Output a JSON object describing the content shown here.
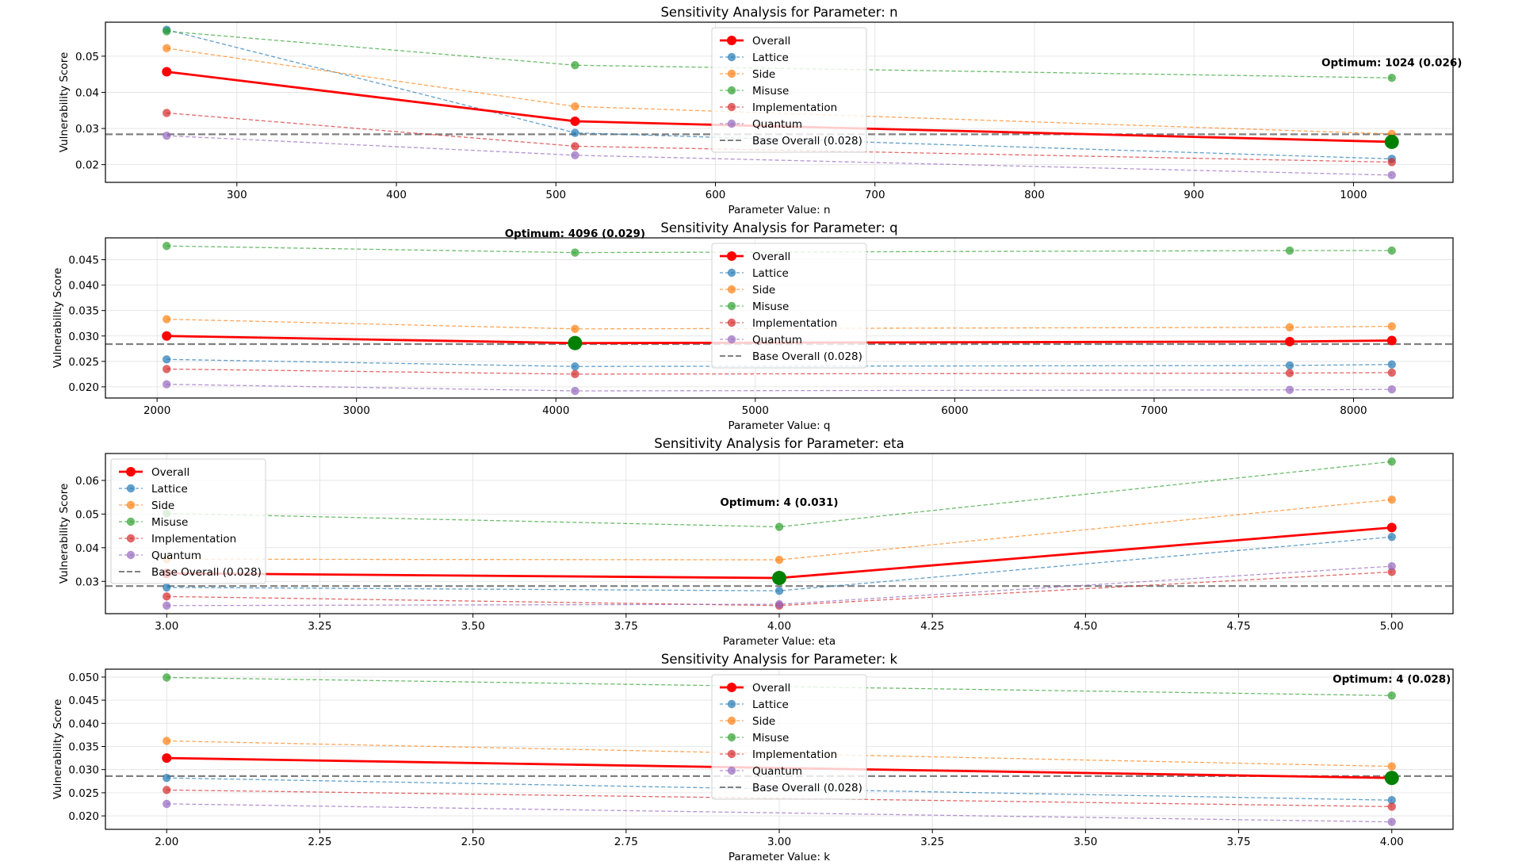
{
  "figure_title": "",
  "legend_labels": {
    "overall": "Overall",
    "lattice": "Lattice",
    "side": "Side",
    "misuse": "Misuse",
    "implementation": "Implementation",
    "quantum": "Quantum",
    "base": "Base Overall (0.028)"
  },
  "colors": {
    "overall": "#ff0000",
    "lattice": "#1f77b4",
    "side": "#ff7f0e",
    "misuse": "#2ca02c",
    "implementation": "#d62728",
    "quantum": "#9467bd",
    "base": "#808080",
    "optimum": "#008000",
    "grid": "#e0e0e0"
  },
  "chart_data": [
    {
      "type": "line",
      "title": "Sensitivity Analysis for Parameter: n",
      "xlabel": "Parameter Value: n",
      "ylabel": "Vulnerability Score",
      "x": [
        256,
        512,
        1024
      ],
      "xlim": [
        217.6,
        1062.4
      ],
      "ylim": [
        0.0151,
        0.0594
      ],
      "xticks": [
        300,
        400,
        500,
        600,
        700,
        800,
        900,
        1000
      ],
      "xtick_labels": [
        "300",
        "400",
        "500",
        "600",
        "700",
        "800",
        "900",
        "1000"
      ],
      "yticks": [
        0.02,
        0.03,
        0.04,
        0.05
      ],
      "ytick_labels": [
        "0.02",
        "0.03",
        "0.04",
        "0.05"
      ],
      "grid": true,
      "legend_position": "upper-center",
      "series": [
        {
          "key": "overall",
          "name": "Overall",
          "values": [
            0.0457,
            0.032,
            0.0263
          ]
        },
        {
          "key": "lattice",
          "name": "Lattice",
          "values": [
            0.0573,
            0.0288,
            0.0216
          ]
        },
        {
          "key": "side",
          "name": "Side",
          "values": [
            0.0522,
            0.0361,
            0.0285
          ]
        },
        {
          "key": "misuse",
          "name": "Misuse",
          "values": [
            0.0569,
            0.0475,
            0.044
          ]
        },
        {
          "key": "implementation",
          "name": "Implementation",
          "values": [
            0.0343,
            0.0251,
            0.0207
          ]
        },
        {
          "key": "quantum",
          "name": "Quantum",
          "values": [
            0.028,
            0.0226,
            0.0171
          ]
        }
      ],
      "base_overall": 0.0284,
      "optimum": {
        "x": 1024,
        "y": 0.0263,
        "label": "Optimum: 1024 (0.026)"
      }
    },
    {
      "type": "line",
      "title": "Sensitivity Analysis for Parameter: q",
      "xlabel": "Parameter Value: q",
      "ylabel": "Vulnerability Score",
      "x": [
        2048,
        4096,
        7680,
        8192
      ],
      "xlim": [
        1741,
        8499
      ],
      "ylim": [
        0.0178,
        0.0493
      ],
      "xticks": [
        2000,
        3000,
        4000,
        5000,
        6000,
        7000,
        8000
      ],
      "xtick_labels": [
        "2000",
        "3000",
        "4000",
        "5000",
        "6000",
        "7000",
        "8000"
      ],
      "yticks": [
        0.02,
        0.025,
        0.03,
        0.035,
        0.04,
        0.045
      ],
      "ytick_labels": [
        "0.020",
        "0.025",
        "0.030",
        "0.035",
        "0.040",
        "0.045"
      ],
      "grid": true,
      "legend_position": "upper-center",
      "series": [
        {
          "key": "overall",
          "name": "Overall",
          "values": [
            0.03,
            0.0286,
            0.0289,
            0.0291
          ]
        },
        {
          "key": "lattice",
          "name": "Lattice",
          "values": [
            0.0254,
            0.024,
            0.0242,
            0.0244
          ]
        },
        {
          "key": "side",
          "name": "Side",
          "values": [
            0.0333,
            0.0314,
            0.0317,
            0.0319
          ]
        },
        {
          "key": "misuse",
          "name": "Misuse",
          "values": [
            0.0477,
            0.0464,
            0.0468,
            0.0468
          ]
        },
        {
          "key": "implementation",
          "name": "Implementation",
          "values": [
            0.0235,
            0.0225,
            0.0227,
            0.0228
          ]
        },
        {
          "key": "quantum",
          "name": "Quantum",
          "values": [
            0.0205,
            0.0192,
            0.0194,
            0.0195
          ]
        }
      ],
      "base_overall": 0.0284,
      "optimum": {
        "x": 4096,
        "y": 0.0286,
        "label": "Optimum: 4096 (0.029)"
      }
    },
    {
      "type": "line",
      "title": "Sensitivity Analysis for Parameter: eta",
      "xlabel": "Parameter Value: eta",
      "ylabel": "Vulnerability Score",
      "x": [
        3,
        4,
        5
      ],
      "xlim": [
        2.9,
        5.1
      ],
      "ylim": [
        0.0204,
        0.068
      ],
      "xticks": [
        3.0,
        3.25,
        3.5,
        3.75,
        4.0,
        4.25,
        4.5,
        4.75,
        5.0
      ],
      "xtick_labels": [
        "3.00",
        "3.25",
        "3.50",
        "3.75",
        "4.00",
        "4.25",
        "4.50",
        "4.75",
        "5.00"
      ],
      "yticks": [
        0.03,
        0.04,
        0.05,
        0.06
      ],
      "ytick_labels": [
        "0.03",
        "0.04",
        "0.05",
        "0.06"
      ],
      "grid": true,
      "legend_position": "upper-left",
      "series": [
        {
          "key": "overall",
          "name": "Overall",
          "values": [
            0.0324,
            0.031,
            0.046
          ]
        },
        {
          "key": "lattice",
          "name": "Lattice",
          "values": [
            0.0282,
            0.0272,
            0.0432
          ]
        },
        {
          "key": "side",
          "name": "Side",
          "values": [
            0.0366,
            0.0364,
            0.0543
          ]
        },
        {
          "key": "misuse",
          "name": "Misuse",
          "values": [
            0.0502,
            0.0462,
            0.0656
          ]
        },
        {
          "key": "implementation",
          "name": "Implementation",
          "values": [
            0.0255,
            0.0228,
            0.0328
          ]
        },
        {
          "key": "quantum",
          "name": "Quantum",
          "values": [
            0.0228,
            0.0232,
            0.0345
          ]
        }
      ],
      "base_overall": 0.0286,
      "optimum": {
        "x": 4,
        "y": 0.031,
        "label": "Optimum: 4 (0.031)"
      }
    },
    {
      "type": "line",
      "title": "Sensitivity Analysis for Parameter: k",
      "xlabel": "Parameter Value: k",
      "ylabel": "Vulnerability Score",
      "x": [
        2,
        4
      ],
      "xlim": [
        1.9,
        4.1
      ],
      "ylim": [
        0.0171,
        0.0517
      ],
      "xticks": [
        2.0,
        2.25,
        2.5,
        2.75,
        3.0,
        3.25,
        3.5,
        3.75,
        4.0
      ],
      "xtick_labels": [
        "2.00",
        "2.25",
        "2.50",
        "2.75",
        "3.00",
        "3.25",
        "3.50",
        "3.75",
        "4.00"
      ],
      "yticks": [
        0.02,
        0.025,
        0.03,
        0.035,
        0.04,
        0.045,
        0.05
      ],
      "ytick_labels": [
        "0.020",
        "0.025",
        "0.030",
        "0.035",
        "0.040",
        "0.045",
        "0.050"
      ],
      "grid": true,
      "legend_position": "upper-center",
      "series": [
        {
          "key": "overall",
          "name": "Overall",
          "values": [
            0.0325,
            0.0282
          ]
        },
        {
          "key": "lattice",
          "name": "Lattice",
          "values": [
            0.0282,
            0.0234
          ]
        },
        {
          "key": "side",
          "name": "Side",
          "values": [
            0.0362,
            0.0307
          ]
        },
        {
          "key": "misuse",
          "name": "Misuse",
          "values": [
            0.0499,
            0.046
          ]
        },
        {
          "key": "implementation",
          "name": "Implementation",
          "values": [
            0.0256,
            0.022
          ]
        },
        {
          "key": "quantum",
          "name": "Quantum",
          "values": [
            0.0226,
            0.0187
          ]
        }
      ],
      "base_overall": 0.0286,
      "optimum": {
        "x": 4,
        "y": 0.0282,
        "label": "Optimum: 4 (0.028)"
      }
    }
  ]
}
